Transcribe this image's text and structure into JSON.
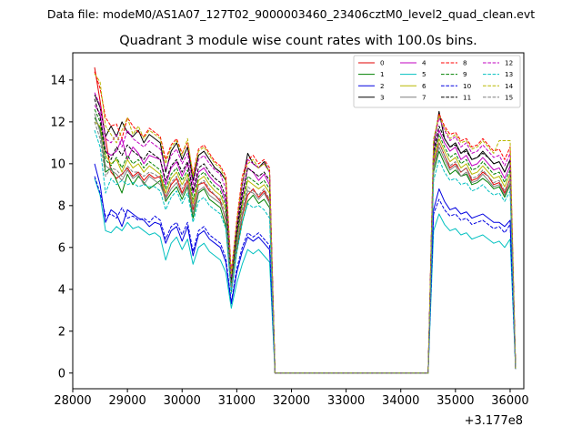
{
  "chart_data": {
    "type": "line",
    "suptitle": "Data file: modeM0/AS1A07_127T02_9000003460_23406cztM0_level2_quad_clean.evt",
    "title": "Quadrant 3 module wise count rates with 100.0s bins.",
    "xlabel": "",
    "ylabel": "",
    "x_offset_label": "+3.177e8",
    "xlim": [
      28000,
      36250
    ],
    "ylim": [
      -0.75,
      15.3
    ],
    "xticks": [
      28000,
      29000,
      30000,
      31000,
      32000,
      33000,
      34000,
      35000,
      36000
    ],
    "xtick_labels": [
      "28000",
      "29000",
      "30000",
      "31000",
      "32000",
      "33000",
      "34000",
      "35000",
      "36000"
    ],
    "yticks": [
      0,
      2,
      4,
      6,
      8,
      10,
      12,
      14
    ],
    "ytick_labels": [
      "0",
      "2",
      "4",
      "6",
      "8",
      "10",
      "12",
      "14"
    ],
    "legend_location": "upper-right",
    "bins_per_segment": 36,
    "segments": [
      {
        "x_start": 28400,
        "x_step": 100
      },
      {
        "x_start": 32000,
        "x_step": 100
      },
      {
        "x_start": 34500,
        "x_step": 100
      }
    ],
    "series": [
      {
        "name": "0",
        "color": "#e00000",
        "dash": false,
        "first": [
          14.6,
          13.0,
          11.2,
          9.6,
          9.3,
          9.5,
          9.8,
          9.4,
          9.6,
          9.2,
          9.5,
          9.3,
          9.4,
          8.4,
          9.0,
          9.3,
          8.6,
          9.2,
          7.8,
          9.0,
          9.1,
          8.7,
          8.5,
          8.2,
          7.3,
          4.0,
          6.0,
          7.5,
          8.5,
          8.8,
          8.4,
          8.7,
          8.2,
          0.0
        ],
        "second": [
          0.0,
          10.0,
          11.0,
          10.4,
          9.8,
          10.0,
          9.6,
          9.8,
          9.2,
          9.3,
          9.6,
          9.4,
          9.0,
          9.1,
          8.6,
          9.3,
          0.2
        ]
      },
      {
        "name": "1",
        "color": "#008000",
        "dash": false,
        "first": [
          12.2,
          11.7,
          9.6,
          9.8,
          9.2,
          8.6,
          9.5,
          9.0,
          9.4,
          9.1,
          8.8,
          9.0,
          9.2,
          8.2,
          8.6,
          8.9,
          8.3,
          8.9,
          7.4,
          8.6,
          8.8,
          8.3,
          8.1,
          7.9,
          7.0,
          3.9,
          5.8,
          7.2,
          8.2,
          8.5,
          8.1,
          8.3,
          7.9,
          0.0
        ],
        "second": [
          0.0,
          9.6,
          10.6,
          10.0,
          9.5,
          9.7,
          9.4,
          9.5,
          9.0,
          9.1,
          9.3,
          9.1,
          8.8,
          8.9,
          8.4,
          9.0,
          0.2
        ]
      },
      {
        "name": "2",
        "color": "#0000e0",
        "dash": false,
        "first": [
          10.0,
          9.0,
          7.2,
          7.8,
          7.6,
          7.0,
          7.8,
          7.6,
          7.4,
          7.3,
          7.0,
          7.2,
          7.1,
          6.2,
          6.8,
          7.0,
          6.3,
          7.0,
          5.6,
          6.6,
          6.8,
          6.4,
          6.2,
          6.0,
          5.3,
          3.3,
          4.8,
          5.8,
          6.5,
          6.3,
          6.5,
          6.2,
          5.9,
          0.0
        ],
        "second": [
          0.0,
          7.8,
          8.8,
          8.2,
          7.8,
          7.9,
          7.6,
          7.7,
          7.4,
          7.5,
          7.6,
          7.4,
          7.2,
          7.2,
          7.0,
          7.3,
          0.2
        ]
      },
      {
        "name": "3",
        "color": "#000000",
        "dash": false,
        "first": [
          13.3,
          12.7,
          11.3,
          11.8,
          11.3,
          12.0,
          11.5,
          11.3,
          11.6,
          11.0,
          11.4,
          11.2,
          11.0,
          9.6,
          10.6,
          11.0,
          10.2,
          10.8,
          9.2,
          10.4,
          10.6,
          10.2,
          9.8,
          9.6,
          9.2,
          4.5,
          7.0,
          9.0,
          10.5,
          10.0,
          9.8,
          10.1,
          9.6,
          0.0
        ],
        "second": [
          0.0,
          10.8,
          12.5,
          11.2,
          10.8,
          11.0,
          10.5,
          10.7,
          10.2,
          10.3,
          10.6,
          10.3,
          10.0,
          10.1,
          9.6,
          10.2,
          0.2
        ]
      },
      {
        "name": "4",
        "color": "#c000c0",
        "dash": false,
        "first": [
          12.8,
          12.4,
          10.6,
          10.4,
          10.6,
          11.2,
          10.2,
          10.8,
          10.5,
          10.0,
          10.4,
          10.3,
          10.2,
          9.0,
          9.8,
          10.1,
          9.4,
          10.0,
          8.6,
          9.6,
          9.8,
          9.4,
          9.1,
          8.9,
          8.2,
          4.3,
          6.6,
          8.4,
          9.8,
          9.6,
          9.2,
          9.5,
          9.0,
          0.0
        ],
        "second": [
          0.0,
          10.4,
          11.6,
          11.0,
          10.6,
          10.8,
          10.2,
          10.4,
          9.9,
          10.0,
          10.3,
          10.0,
          9.7,
          9.8,
          9.3,
          9.9,
          0.2
        ]
      },
      {
        "name": "5",
        "color": "#00c0c0",
        "dash": false,
        "first": [
          9.3,
          8.5,
          6.8,
          6.7,
          7.0,
          6.8,
          7.2,
          6.9,
          7.0,
          6.8,
          6.6,
          6.7,
          6.5,
          5.4,
          6.2,
          6.5,
          5.9,
          6.4,
          5.2,
          6.0,
          6.2,
          5.8,
          5.6,
          5.4,
          4.8,
          3.1,
          4.3,
          5.2,
          5.9,
          5.7,
          5.9,
          5.6,
          5.3,
          0.0
        ],
        "second": [
          0.0,
          6.8,
          7.6,
          7.1,
          6.8,
          6.9,
          6.6,
          6.7,
          6.4,
          6.5,
          6.6,
          6.4,
          6.2,
          6.3,
          6.0,
          6.4,
          0.2
        ]
      },
      {
        "name": "6",
        "color": "#b8b800",
        "dash": false,
        "first": [
          12.0,
          11.8,
          10.4,
          10.0,
          10.2,
          9.6,
          10.2,
          9.8,
          10.0,
          9.6,
          9.9,
          9.7,
          9.5,
          8.6,
          9.3,
          9.6,
          9.0,
          9.5,
          8.1,
          9.2,
          9.4,
          9.0,
          8.7,
          8.5,
          7.8,
          4.2,
          6.4,
          8.0,
          9.2,
          9.0,
          8.8,
          9.0,
          8.6,
          0.0
        ],
        "second": [
          0.0,
          10.2,
          11.2,
          10.6,
          10.1,
          10.3,
          9.8,
          10.0,
          9.5,
          9.6,
          9.9,
          9.6,
          9.3,
          9.4,
          8.9,
          9.5,
          0.2
        ]
      },
      {
        "name": "7",
        "color": "#7f7f7f",
        "dash": false,
        "first": [
          12.4,
          11.5,
          9.9,
          9.7,
          9.5,
          9.2,
          9.7,
          9.3,
          9.5,
          9.0,
          9.4,
          9.2,
          9.0,
          8.3,
          8.8,
          9.1,
          8.5,
          9.0,
          7.6,
          8.7,
          8.9,
          8.5,
          8.3,
          8.1,
          7.4,
          4.0,
          6.1,
          7.6,
          8.7,
          8.6,
          8.3,
          8.6,
          8.1,
          0.0
        ],
        "second": [
          0.0,
          9.8,
          10.8,
          10.2,
          9.7,
          9.9,
          9.4,
          9.6,
          9.1,
          9.2,
          9.5,
          9.2,
          8.9,
          9.0,
          8.5,
          9.1,
          0.2
        ]
      },
      {
        "name": "8",
        "color": "#ff0000",
        "dash": true,
        "first": [
          14.4,
          13.6,
          12.2,
          11.8,
          11.9,
          11.2,
          12.2,
          11.8,
          11.5,
          11.3,
          11.7,
          11.5,
          11.3,
          10.2,
          10.9,
          11.2,
          10.5,
          11.0,
          9.5,
          10.7,
          10.9,
          10.5,
          10.1,
          9.9,
          9.4,
          4.8,
          7.3,
          9.4,
          10.2,
          10.4,
          10.0,
          10.2,
          9.8,
          0.0
        ],
        "second": [
          0.0,
          11.0,
          12.4,
          11.8,
          11.4,
          11.5,
          11.1,
          11.2,
          10.8,
          10.9,
          11.2,
          10.9,
          10.6,
          10.7,
          10.2,
          10.8,
          0.2
        ]
      },
      {
        "name": "9",
        "color": "#008000",
        "dash": true,
        "first": [
          12.6,
          12.0,
          10.2,
          9.9,
          10.3,
          9.8,
          10.4,
          10.0,
          10.2,
          9.8,
          10.1,
          9.9,
          9.7,
          8.8,
          9.5,
          9.8,
          9.2,
          9.7,
          8.3,
          9.4,
          9.6,
          9.2,
          8.9,
          8.7,
          8.0,
          4.3,
          6.5,
          8.2,
          9.4,
          9.2,
          9.0,
          9.2,
          8.8,
          0.0
        ],
        "second": [
          0.0,
          10.4,
          11.4,
          10.8,
          10.3,
          10.5,
          10.0,
          10.2,
          9.7,
          9.8,
          10.1,
          9.8,
          9.5,
          9.6,
          9.1,
          9.7,
          0.2
        ]
      },
      {
        "name": "10",
        "color": "#0000e0",
        "dash": true,
        "first": [
          9.4,
          8.6,
          7.5,
          7.6,
          7.4,
          7.9,
          7.4,
          7.5,
          7.3,
          7.4,
          7.2,
          7.5,
          7.3,
          6.4,
          7.0,
          7.2,
          6.6,
          7.2,
          5.8,
          6.8,
          7.0,
          6.6,
          6.4,
          6.2,
          5.5,
          3.4,
          5.0,
          6.0,
          6.7,
          6.5,
          6.7,
          6.4,
          6.1,
          0.0
        ],
        "second": [
          0.0,
          7.6,
          8.3,
          7.8,
          7.5,
          7.6,
          7.3,
          7.4,
          7.1,
          7.2,
          7.3,
          7.1,
          6.9,
          7.0,
          6.7,
          7.1,
          0.2
        ]
      },
      {
        "name": "11",
        "color": "#000000",
        "dash": true,
        "first": [
          13.1,
          12.2,
          10.6,
          10.2,
          10.8,
          10.4,
          10.9,
          10.6,
          10.4,
          10.2,
          10.6,
          10.4,
          10.2,
          9.2,
          9.9,
          10.2,
          9.6,
          10.1,
          8.7,
          9.8,
          10.0,
          9.6,
          9.3,
          9.1,
          8.4,
          4.4,
          6.8,
          8.6,
          9.8,
          9.6,
          9.4,
          9.6,
          9.2,
          0.0
        ],
        "second": [
          0.0,
          10.6,
          11.8,
          11.2,
          10.8,
          10.9,
          10.5,
          10.6,
          10.2,
          10.3,
          10.5,
          10.3,
          10.0,
          10.1,
          9.6,
          10.2,
          0.2
        ]
      },
      {
        "name": "12",
        "color": "#c000c0",
        "dash": true,
        "first": [
          13.4,
          12.8,
          11.2,
          11.0,
          11.4,
          10.8,
          11.6,
          11.2,
          11.0,
          10.8,
          11.1,
          10.9,
          10.7,
          9.7,
          10.4,
          10.7,
          10.0,
          10.5,
          9.0,
          10.2,
          10.4,
          10.0,
          9.7,
          9.5,
          8.8,
          4.6,
          7.1,
          9.0,
          10.2,
          10.0,
          9.8,
          10.0,
          9.6,
          0.0
        ],
        "second": [
          0.0,
          11.0,
          12.2,
          11.6,
          11.1,
          11.3,
          10.8,
          11.0,
          10.5,
          10.6,
          10.9,
          10.6,
          10.3,
          10.4,
          9.9,
          10.5,
          0.2
        ]
      },
      {
        "name": "13",
        "color": "#00c0c0",
        "dash": true,
        "first": [
          11.6,
          10.8,
          8.6,
          9.3,
          9.0,
          9.2,
          9.0,
          9.1,
          8.9,
          9.0,
          8.9,
          8.9,
          8.7,
          7.8,
          8.4,
          8.7,
          8.1,
          8.6,
          7.2,
          8.2,
          8.4,
          8.0,
          7.8,
          7.6,
          6.9,
          3.8,
          5.8,
          7.2,
          8.1,
          7.9,
          8.0,
          7.8,
          7.4,
          0.0
        ],
        "second": [
          0.0,
          9.2,
          10.2,
          9.6,
          9.2,
          9.3,
          9.0,
          9.1,
          8.7,
          8.8,
          9.0,
          8.7,
          8.5,
          8.6,
          8.2,
          8.7,
          0.2
        ]
      },
      {
        "name": "14",
        "color": "#b8b800",
        "dash": true,
        "first": [
          14.3,
          13.9,
          11.8,
          11.4,
          11.0,
          11.6,
          12.2,
          11.4,
          11.8,
          11.2,
          11.6,
          11.4,
          11.2,
          10.0,
          10.8,
          11.1,
          10.4,
          11.2,
          9.4,
          10.6,
          10.8,
          10.4,
          10.0,
          9.8,
          9.2,
          4.7,
          7.2,
          9.2,
          10.0,
          10.2,
          9.8,
          10.0,
          9.6,
          0.0
        ],
        "second": [
          0.0,
          11.2,
          12.3,
          11.7,
          11.2,
          11.4,
          11.0,
          11.1,
          10.7,
          10.8,
          11.1,
          10.8,
          10.5,
          11.1,
          11.1,
          11.1,
          0.2
        ]
      },
      {
        "name": "15",
        "color": "#7f7f7f",
        "dash": true,
        "first": [
          12.0,
          11.2,
          9.4,
          9.8,
          9.7,
          9.4,
          9.9,
          9.6,
          9.6,
          9.4,
          9.6,
          9.5,
          9.3,
          8.4,
          9.1,
          9.4,
          8.8,
          9.3,
          7.9,
          9.0,
          9.2,
          8.8,
          8.5,
          8.3,
          7.6,
          4.1,
          6.2,
          7.8,
          8.9,
          8.7,
          8.5,
          8.8,
          8.3,
          0.0
        ],
        "second": [
          0.0,
          9.9,
          11.0,
          10.4,
          9.9,
          10.1,
          9.6,
          9.8,
          9.3,
          9.4,
          9.7,
          9.4,
          9.1,
          9.2,
          8.7,
          9.3,
          0.2
        ]
      }
    ]
  }
}
